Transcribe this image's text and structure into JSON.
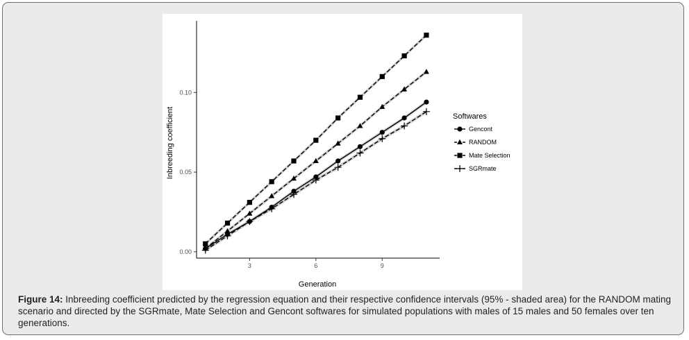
{
  "caption": {
    "label": "Figure 14:",
    "text": "Inbreeding coefficient predicted by the regression equation and their respective confidence intervals (95% - shaded area) for the RANDOM mating scenario and directed by the SGRmate, Mate Selection and Gencont softwares for simulated populations with males of 15 males and 50 females over ten generations."
  },
  "chart_data": {
    "type": "line",
    "title": "",
    "xlabel": "Generation",
    "ylabel": "Inbreeding coefficient",
    "xlim": [
      0.6,
      11.6
    ],
    "ylim": [
      -0.004,
      0.145
    ],
    "xticks": [
      3,
      6,
      9
    ],
    "xtick_labels": [
      "3",
      "6",
      "9"
    ],
    "yticks": [
      0.0,
      0.05,
      0.1
    ],
    "ytick_labels": [
      "0.00",
      "0.05",
      "0.10"
    ],
    "grid": false,
    "legend": {
      "title": "Softwares",
      "position": "right"
    },
    "confidence_band": "95%",
    "x": [
      1,
      2,
      3,
      4,
      5,
      6,
      7,
      8,
      9,
      10,
      11
    ],
    "series": [
      {
        "name": "Gencont",
        "marker": "circle",
        "line": "solid",
        "values": [
          0.002,
          0.011,
          0.019,
          0.028,
          0.038,
          0.047,
          0.057,
          0.066,
          0.075,
          0.084,
          0.094
        ]
      },
      {
        "name": "RANDOM",
        "marker": "triangle",
        "line": "dashed",
        "values": [
          0.002,
          0.013,
          0.024,
          0.035,
          0.046,
          0.057,
          0.068,
          0.079,
          0.091,
          0.102,
          0.113
        ]
      },
      {
        "name": "Mate Selection",
        "marker": "square",
        "line": "dashed",
        "values": [
          0.005,
          0.018,
          0.031,
          0.044,
          0.057,
          0.07,
          0.084,
          0.097,
          0.11,
          0.123,
          0.136
        ]
      },
      {
        "name": "SGRmate",
        "marker": "plus",
        "line": "dashed",
        "values": [
          0.001,
          0.01,
          0.019,
          0.027,
          0.036,
          0.045,
          0.053,
          0.062,
          0.071,
          0.079,
          0.088
        ]
      }
    ]
  }
}
